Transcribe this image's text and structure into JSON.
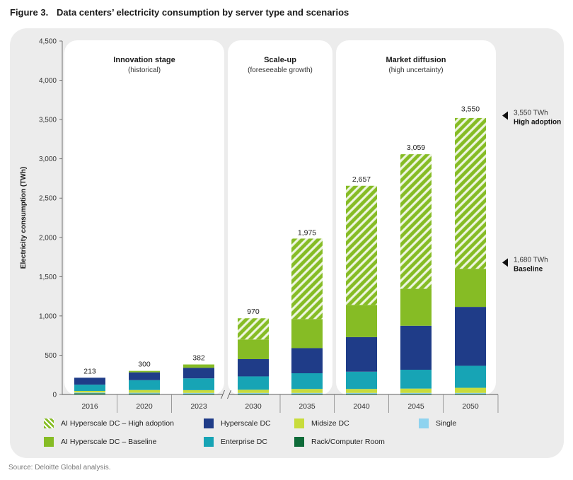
{
  "figure": {
    "number": "Figure 3.",
    "title": "Data centers’ electricity consumption by server type and scenarios",
    "source": "Source: Deloitte Global analysis."
  },
  "colors": {
    "hyperscale_high": "#86bc25",
    "hyperscale_high_stripe": "#ffffff",
    "hyperscale_baseline": "#86bc25",
    "hyperscale": "#1f3c88",
    "enterprise": "#17a4b5",
    "midsize": "#c8dc3c",
    "single": "#8fd3ef",
    "rack": "#0e6b39",
    "panel_bg": "#ececec",
    "stage_bg": "#ffffff"
  },
  "chart_data": {
    "type": "bar",
    "stacked": true,
    "ylabel": "Electricity consumption (TWh)",
    "ylim": [
      0,
      4500
    ],
    "yticks": [
      0,
      500,
      1000,
      1500,
      2000,
      2500,
      3000,
      3500,
      4000,
      4500
    ],
    "ytick_labels": [
      "0",
      "500",
      "1,000",
      "1,500",
      "2,000",
      "2,500",
      "3,000",
      "3,500",
      "4,000",
      "4,500"
    ],
    "categories": [
      "2016",
      "2020",
      "2023",
      "2030",
      "2035",
      "2040",
      "2045",
      "2050"
    ],
    "axis_break_after": "2023",
    "series": [
      {
        "name": "Rack/Computer Room",
        "key": "rack",
        "values": [
          15,
          12,
          10,
          10,
          10,
          10,
          10,
          10
        ]
      },
      {
        "name": "Single",
        "key": "single",
        "values": [
          10,
          10,
          10,
          10,
          10,
          10,
          10,
          10
        ]
      },
      {
        "name": "Midsize DC",
        "key": "midsize",
        "values": [
          20,
          35,
          35,
          40,
          50,
          50,
          55,
          65
        ]
      },
      {
        "name": "Enterprise DC",
        "key": "enterprise",
        "values": [
          80,
          125,
          150,
          170,
          200,
          220,
          240,
          280
        ]
      },
      {
        "name": "Hyperscale DC",
        "key": "hyperscale",
        "values": [
          88,
          100,
          135,
          220,
          320,
          440,
          560,
          750
        ]
      },
      {
        "name": "AI Hyperscale DC – Baseline",
        "key": "hyperscale_baseline",
        "values": [
          0,
          18,
          42,
          250,
          370,
          410,
          470,
          485
        ]
      },
      {
        "name": "AI Hyperscale DC – High adoption",
        "key": "hyperscale_high",
        "values": [
          0,
          0,
          0,
          270,
          1025,
          1517,
          1714,
          1920
        ]
      }
    ],
    "totals": [
      213,
      300,
      382,
      970,
      1975,
      2657,
      3059,
      3550
    ],
    "total_labels": [
      "213",
      "300",
      "382",
      "970",
      "1,975",
      "2,657",
      "3,059",
      "3,550"
    ],
    "stages": [
      {
        "title": "Innovation stage",
        "subtitle": "(historical)",
        "from": "2016",
        "to": "2023"
      },
      {
        "title": "Scale-up",
        "subtitle": "(foreseeable growth)",
        "from": "2030",
        "to": "2035"
      },
      {
        "title": "Market diffusion",
        "subtitle": "(high uncertainty)",
        "from": "2040",
        "to": "2050"
      }
    ],
    "annotations": [
      {
        "value_label": "3,550 TWh",
        "label": "High adoption",
        "y": 3550
      },
      {
        "value_label": "1,680 TWh",
        "label": "Baseline",
        "y": 1680
      }
    ],
    "legend": [
      {
        "key": "hyperscale_high",
        "label": "AI Hyperscale DC – High adoption",
        "striped": true
      },
      {
        "key": "hyperscale",
        "label": "Hyperscale DC"
      },
      {
        "key": "midsize",
        "label": "Midsize DC"
      },
      {
        "key": "single",
        "label": "Single"
      },
      {
        "key": "hyperscale_baseline",
        "label": "AI Hyperscale DC – Baseline"
      },
      {
        "key": "enterprise",
        "label": "Enterprise DC"
      },
      {
        "key": "rack",
        "label": "Rack/Computer Room"
      }
    ],
    "legend_position": "bottom"
  }
}
